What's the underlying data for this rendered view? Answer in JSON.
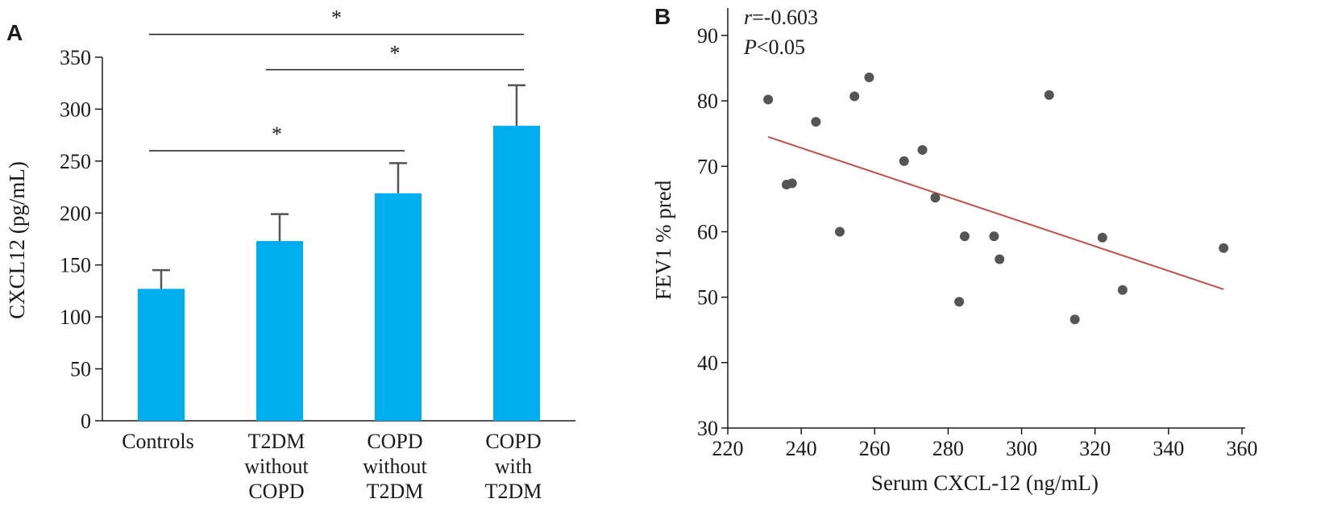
{
  "chart_data": [
    {
      "panel_label": "A",
      "type": "bar",
      "categories": [
        [
          "Controls"
        ],
        [
          "T2DM",
          "without",
          "COPD"
        ],
        [
          "COPD",
          "without",
          "T2DM"
        ],
        [
          "COPD",
          "with",
          "T2DM"
        ]
      ],
      "values": [
        127,
        173,
        219,
        284
      ],
      "errors": [
        18,
        26,
        29,
        39
      ],
      "ylabel": "CXCL12 (pg/mL)",
      "ylim": [
        0,
        350
      ],
      "yticks": [
        0,
        50,
        100,
        150,
        200,
        250,
        300,
        350
      ],
      "bar_color": "#00aeef",
      "error_color": "#555555",
      "significance": [
        {
          "from": 0,
          "to": 3,
          "label": "*",
          "y": 372
        },
        {
          "from": 1,
          "to": 3,
          "label": "*",
          "y": 338
        },
        {
          "from": 0,
          "to": 2,
          "label": "*",
          "y": 260
        }
      ]
    },
    {
      "panel_label": "B",
      "type": "scatter",
      "xlabel": "Serum CXCL-12 (ng/mL)",
      "ylabel": "FEV1 % pred",
      "xlim": [
        220,
        360
      ],
      "ylim": [
        30,
        92
      ],
      "xticks": [
        220,
        240,
        260,
        280,
        300,
        320,
        340,
        360
      ],
      "yticks": [
        30,
        40,
        50,
        60,
        70,
        80,
        90
      ],
      "annotation": {
        "r_symbol": "r",
        "r_value": "=-0.603",
        "p_symbol": "P",
        "p_value": "<0.05"
      },
      "points": [
        [
          231,
          80.2
        ],
        [
          236,
          67.2
        ],
        [
          237.5,
          67.4
        ],
        [
          244,
          76.8
        ],
        [
          250.5,
          60.0
        ],
        [
          254.5,
          80.7
        ],
        [
          258.5,
          83.6
        ],
        [
          268,
          70.8
        ],
        [
          273,
          72.5
        ],
        [
          276.5,
          65.2
        ],
        [
          283,
          49.3
        ],
        [
          284.5,
          59.3
        ],
        [
          292.5,
          59.3
        ],
        [
          294,
          55.8
        ],
        [
          307.5,
          80.9
        ],
        [
          314.5,
          46.6
        ],
        [
          322,
          59.1
        ],
        [
          327.5,
          51.1
        ],
        [
          355,
          57.5
        ]
      ],
      "fit_line": [
        [
          231,
          74.5
        ],
        [
          355,
          51.2
        ]
      ],
      "point_color": "#555555",
      "line_color": "#c0504d"
    }
  ]
}
